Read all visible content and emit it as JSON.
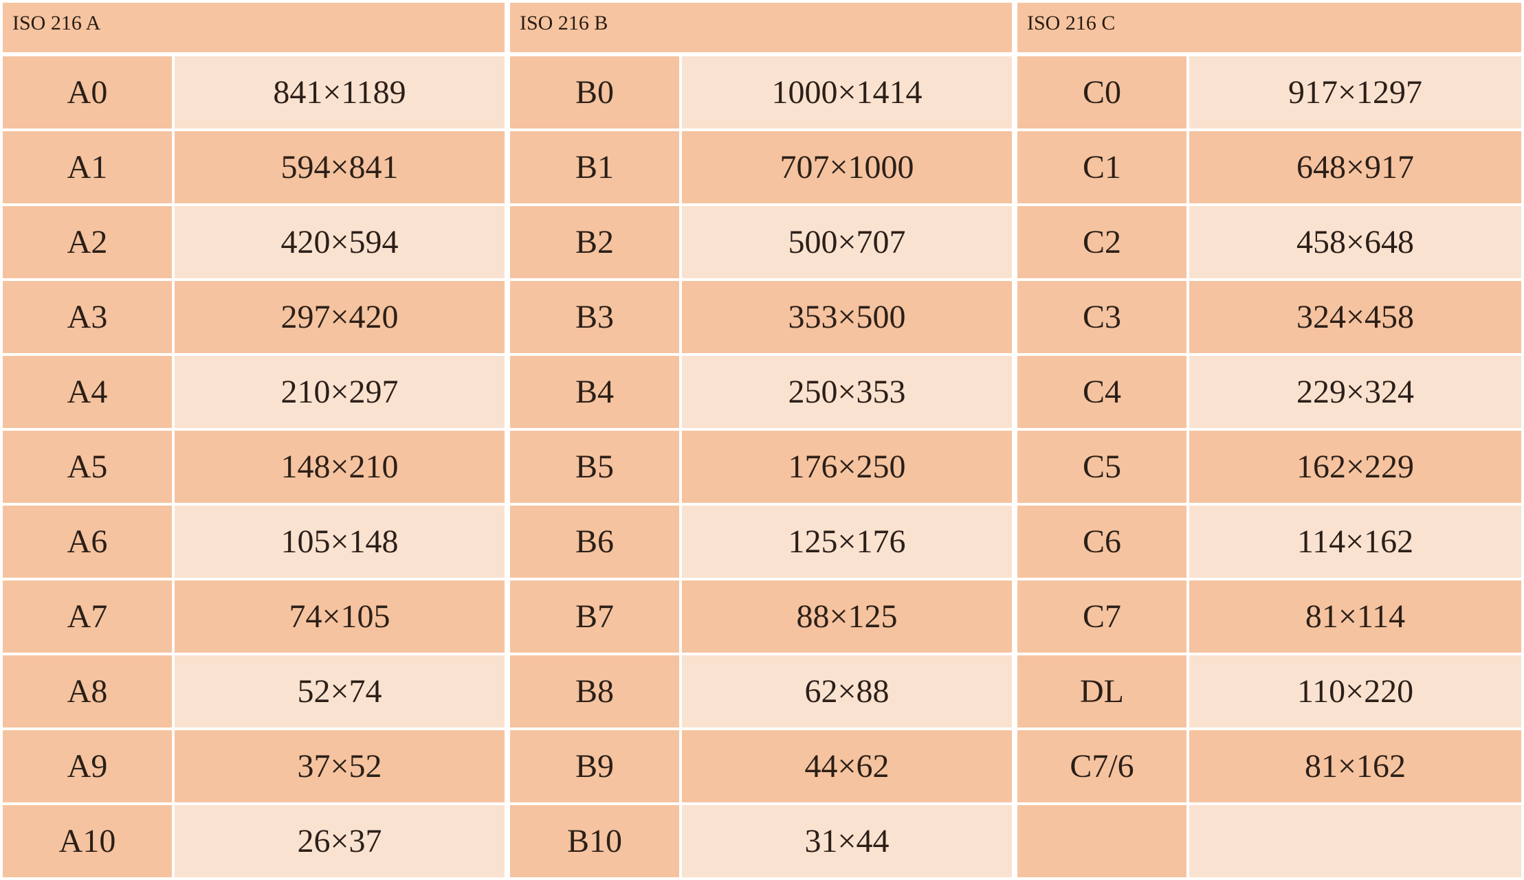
{
  "sections": [
    {
      "id": "a",
      "title": "ISO 216 A",
      "rows": [
        {
          "name": "A0",
          "size": "841×1189"
        },
        {
          "name": "A1",
          "size": "594×841"
        },
        {
          "name": "A2",
          "size": "420×594"
        },
        {
          "name": "A3",
          "size": "297×420"
        },
        {
          "name": "A4",
          "size": "210×297"
        },
        {
          "name": "A5",
          "size": "148×210"
        },
        {
          "name": "A6",
          "size": "105×148"
        },
        {
          "name": "A7",
          "size": "74×105"
        },
        {
          "name": "A8",
          "size": "52×74"
        },
        {
          "name": "A9",
          "size": "37×52"
        },
        {
          "name": "A10",
          "size": "26×37"
        }
      ]
    },
    {
      "id": "b",
      "title": "ISO 216 B",
      "rows": [
        {
          "name": "B0",
          "size": "1000×1414"
        },
        {
          "name": "B1",
          "size": "707×1000"
        },
        {
          "name": "B2",
          "size": "500×707"
        },
        {
          "name": "B3",
          "size": "353×500"
        },
        {
          "name": "B4",
          "size": "250×353"
        },
        {
          "name": "B5",
          "size": "176×250"
        },
        {
          "name": "B6",
          "size": "125×176"
        },
        {
          "name": "B7",
          "size": "88×125"
        },
        {
          "name": "B8",
          "size": "62×88"
        },
        {
          "name": "B9",
          "size": "44×62"
        },
        {
          "name": "B10",
          "size": "31×44"
        }
      ]
    },
    {
      "id": "c",
      "title": "ISO 216 C",
      "rows": [
        {
          "name": "C0",
          "size": "917×1297"
        },
        {
          "name": "C1",
          "size": "648×917"
        },
        {
          "name": "C2",
          "size": "458×648"
        },
        {
          "name": "C3",
          "size": "324×458"
        },
        {
          "name": "C4",
          "size": "229×324"
        },
        {
          "name": "C5",
          "size": "162×229"
        },
        {
          "name": "C6",
          "size": "114×162"
        },
        {
          "name": "C7",
          "size": "81×114"
        },
        {
          "name": "DL",
          "size": "110×220"
        },
        {
          "name": "C7/6",
          "size": "81×162"
        },
        {
          "name": "",
          "size": ""
        }
      ]
    }
  ]
}
